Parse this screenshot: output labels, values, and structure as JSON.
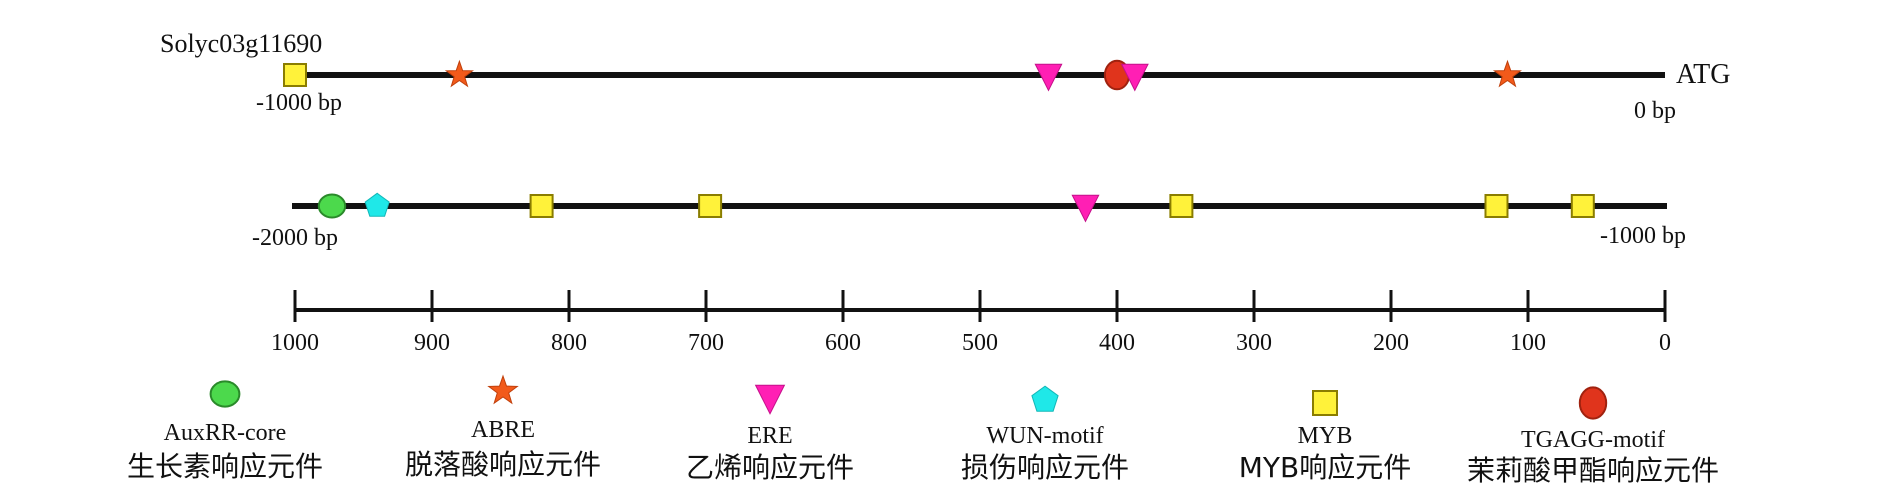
{
  "gene_id": "Solyc03g11690",
  "colors": {
    "line": "#111111",
    "AuxRR-core": "#4cd94c",
    "ABRE": "#f25a1a",
    "ERE": "#ff1fb4",
    "WUN-motif": "#1fe8e8",
    "MYB": "#fff23a",
    "TGAGG-motif": "#e0341c"
  },
  "tracks": [
    {
      "id": "upper",
      "start_label": "-1000 bp",
      "end_label": "0 bp",
      "end_marker": "ATG",
      "range": [
        -1000,
        0
      ],
      "elements": [
        {
          "type": "MYB",
          "pos": -1000
        },
        {
          "type": "ABRE",
          "pos": -880
        },
        {
          "type": "ERE",
          "pos": -450
        },
        {
          "type": "TGAGG-motif",
          "pos": -400
        },
        {
          "type": "ERE",
          "pos": -387
        },
        {
          "type": "ABRE",
          "pos": -115
        }
      ]
    },
    {
      "id": "lower",
      "start_label": "-2000 bp",
      "end_label": "-1000 bp",
      "range": [
        -2000,
        -1000
      ],
      "elements": [
        {
          "type": "AuxRR-core",
          "pos": -1973
        },
        {
          "type": "WUN-motif",
          "pos": -1940
        },
        {
          "type": "MYB",
          "pos": -1820
        },
        {
          "type": "MYB",
          "pos": -1697
        },
        {
          "type": "ERE",
          "pos": -1423
        },
        {
          "type": "MYB",
          "pos": -1353
        },
        {
          "type": "MYB",
          "pos": -1123
        },
        {
          "type": "MYB",
          "pos": -1060
        }
      ]
    }
  ],
  "scale": {
    "from": 1000,
    "to": 0,
    "ticks": [
      1000,
      900,
      800,
      700,
      600,
      500,
      400,
      300,
      200,
      100,
      0
    ],
    "tick_labels": [
      "1000",
      "900",
      "800",
      "700",
      "600",
      "500",
      "400",
      "300",
      "200",
      "100",
      "0"
    ]
  },
  "legend": [
    {
      "type": "AuxRR-core",
      "name": "AuxRR-core",
      "desc": "生长素响应元件",
      "shape": "circle-icon"
    },
    {
      "type": "ABRE",
      "name": "ABRE",
      "desc": "脱落酸响应元件",
      "shape": "star-icon"
    },
    {
      "type": "ERE",
      "name": "ERE",
      "desc": "乙烯响应元件",
      "shape": "triangle-down-icon"
    },
    {
      "type": "WUN-motif",
      "name": "WUN-motif",
      "desc": "损伤响应元件",
      "shape": "pentagon-icon"
    },
    {
      "type": "MYB",
      "name": "MYB",
      "desc": "MYB响应元件",
      "shape": "square-icon"
    },
    {
      "type": "TGAGG-motif",
      "name": "TGAGG-motif",
      "desc": "茉莉酸甲酯响应元件",
      "shape": "oval-icon"
    }
  ]
}
